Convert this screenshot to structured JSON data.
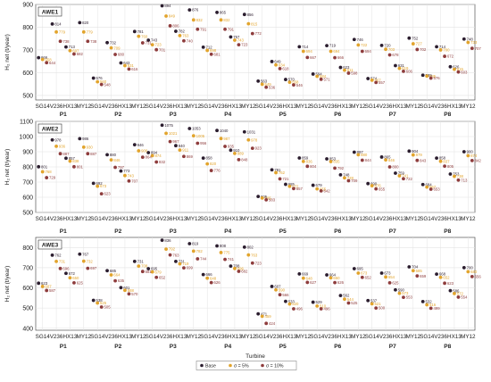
{
  "colors": {
    "base": "#2b1d2e",
    "minus5": "#e2a42c",
    "minus10": "#8e3c3c",
    "grid": "#e3e3e3",
    "axis": "#555555",
    "text": "#222222"
  },
  "legend_labels": [
    "Base",
    "σ = 5%",
    "σ = 10%"
  ],
  "chart_data": [
    {
      "type": "scatter",
      "panel_label": "AWE1",
      "ylabel": "H₂ net (t/year)",
      "xlabel": "",
      "ylim": [
        480,
        900
      ],
      "yticks": [
        500,
        600,
        700,
        800,
        900
      ],
      "grid": true,
      "x_tick_labels": [
        "SG14",
        "V236",
        "HX13",
        "MY12",
        "SG14",
        "V236",
        "HX13",
        "MY12",
        "SG14",
        "V236",
        "HX13",
        "MY12",
        "SG14",
        "V236",
        "HX13",
        "MY12",
        "SG14",
        "V236",
        "HX13",
        "MY12",
        "SG14",
        "V236",
        "HX13",
        "MY12",
        "SG14",
        "V236",
        "HX13",
        "MY12",
        "SG14",
        "V236",
        "HX13",
        "MY12"
      ],
      "groups": [
        "P1",
        "P2",
        "P3",
        "P4",
        "P5",
        "P6",
        "P7",
        "P8"
      ],
      "series": [
        {
          "name": "Base",
          "values": [
            666,
            814,
            713,
            820,
            576,
            732,
            643,
            781,
            743,
            894,
            782,
            876,
            712,
            865,
            757,
            856,
            563,
            649,
            570,
            714,
            594,
            719,
            623,
            746,
            574,
            720,
            631,
            752,
            589,
            714,
            626,
            748
          ]
        },
        {
          "name": "σ = 5%",
          "values": [
            658,
            779,
            697,
            779,
            560,
            709,
            631,
            760,
            723,
            849,
            763,
            832,
            698,
            832,
            743,
            815,
            549,
            634,
            558,
            694,
            584,
            694,
            611,
            722,
            567,
            703,
            619,
            727,
            585,
            700,
            615,
            733
          ]
        },
        {
          "name": "σ = 10%",
          "values": [
            644,
            738,
            682,
            738,
            548,
            680,
            616,
            731,
            701,
            806,
            740,
            791,
            681,
            791,
            723,
            772,
            536,
            618,
            546,
            667,
            571,
            666,
            598,
            694,
            557,
            678,
            606,
            702,
            576,
            672,
            603,
            707
          ]
        }
      ]
    },
    {
      "type": "scatter",
      "panel_label": "AWE2",
      "ylabel": "H₂ net (t/year)",
      "xlabel": "",
      "ylim": [
        500,
        1100
      ],
      "yticks": [
        500,
        600,
        700,
        800,
        900,
        1000,
        1100
      ],
      "grid": true,
      "x_tick_labels": [
        "SG14",
        "V236",
        "HX13",
        "MY12",
        "SG14",
        "V236",
        "HX13",
        "MY12",
        "SG14",
        "V236",
        "HX13",
        "MY12",
        "SG14",
        "V236",
        "HX13",
        "MY12",
        "SG14",
        "V236",
        "HX13",
        "MY12",
        "SG14",
        "V236",
        "HX13",
        "MY12",
        "SG14",
        "V236",
        "HX13",
        "MY12",
        "SG14",
        "V236",
        "HX13",
        "MY12"
      ],
      "groups": [
        "P1",
        "P2",
        "P3",
        "P4",
        "P5",
        "P6",
        "P7",
        "P8"
      ],
      "series": [
        {
          "name": "Base",
          "values": [
            801,
            978,
            857,
            986,
            692,
            880,
            773,
            946,
            894,
            1075,
            940,
            1053,
            858,
            1040,
            910,
            1031,
            605,
            781,
            685,
            859,
            679,
            853,
            748,
            897,
            690,
            865,
            759,
            904,
            684,
            858,
            753,
            900
          ]
        },
        {
          "name": "σ = 5%",
          "values": [
            768,
            936,
            838,
            930,
            673,
            846,
            743,
            906,
            874,
            1021,
            911,
            1005,
            820,
            987,
            889,
            978,
            595,
            762,
            672,
            836,
            655,
            835,
            728,
            880,
            676,
            846,
            741,
            879,
            667,
            837,
            738,
            874
          ]
        },
        {
          "name": "σ = 10%",
          "values": [
            729,
            887,
            801,
            887,
            623,
            797,
            707,
            864,
            832,
            967,
            869,
            956,
            776,
            935,
            848,
            923,
            583,
            721,
            657,
            804,
            642,
            792,
            709,
            844,
            655,
            800,
            722,
            843,
            653,
            805,
            713,
            842
          ]
        }
      ]
    },
    {
      "type": "scatter",
      "panel_label": "AWE3",
      "ylabel": "H₂ net (t/year)",
      "xlabel": "Turbine",
      "ylim": [
        390,
        850
      ],
      "yticks": [
        400,
        500,
        600,
        700,
        800
      ],
      "grid": true,
      "x_tick_labels": [
        "SG14",
        "V236",
        "HX13",
        "MY12",
        "SG14",
        "V236",
        "HX13",
        "MY12",
        "SG14",
        "V236",
        "HX13",
        "MY12",
        "SG14",
        "V236",
        "HX13",
        "MY12",
        "SG14",
        "V236",
        "HX13",
        "MY12",
        "SG14",
        "V236",
        "HX13",
        "MY12",
        "SG14",
        "V236",
        "HX13",
        "MY12",
        "SG14",
        "V236",
        "HX13",
        "MY12"
      ],
      "groups": [
        "P1",
        "P2",
        "P3",
        "P4",
        "P5",
        "P6",
        "P7",
        "P8"
      ],
      "series": [
        {
          "name": "Base",
          "values": [
            623,
            762,
            672,
            767,
            538,
            685,
            601,
            731,
            695,
            836,
            731,
            819,
            666,
            808,
            708,
            802,
            471,
            607,
            533,
            669,
            529,
            664,
            562,
            695,
            537,
            673,
            590,
            704,
            532,
            668,
            586,
            700
          ]
        },
        {
          "name": "σ = 5%",
          "values": [
            607,
            731,
            650,
            732,
            525,
            664,
            588,
            708,
            679,
            792,
            719,
            782,
            648,
            775,
            696,
            763,
            459,
            590,
            520,
            648,
            510,
            650,
            544,
            673,
            521,
            654,
            573,
            685,
            516,
            652,
            572,
            680
          ]
        },
        {
          "name": "σ = 10%",
          "values": [
            587,
            696,
            625,
            697,
            505,
            635,
            570,
            681,
            652,
            763,
            699,
            744,
            626,
            741,
            682,
            723,
            424,
            566,
            496,
            627,
            496,
            626,
            525,
            652,
            500,
            625,
            553,
            659,
            499,
            623,
            554,
            656
          ]
        }
      ]
    }
  ]
}
